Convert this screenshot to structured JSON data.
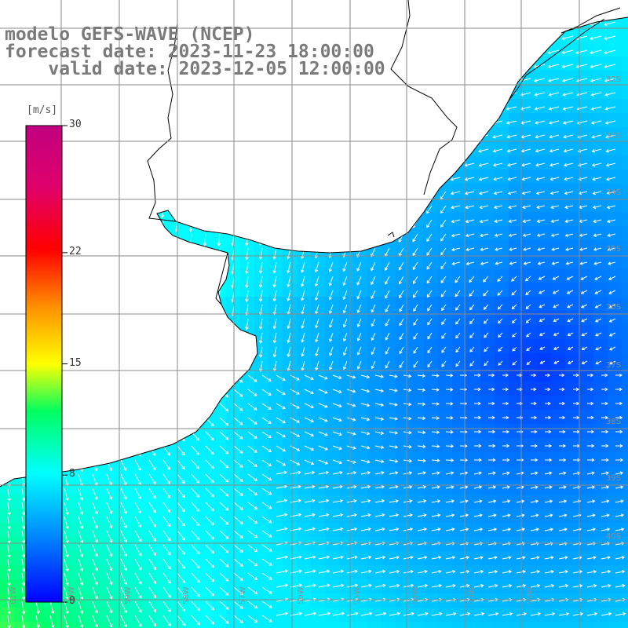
{
  "title": {
    "line1": "modelo GEFS-WAVE (NCEP)",
    "line2": "forecast date: 2023-11-23 18:00:00",
    "line3": "    valid date: 2023-12-05 12:00:00"
  },
  "colorbar": {
    "unit": "[m/s]",
    "ticks": [
      {
        "label": "30",
        "value": 30
      },
      {
        "label": "22",
        "value": 22
      },
      {
        "label": "15",
        "value": 15
      },
      {
        "label": "8",
        "value": 8
      },
      {
        "label": "0",
        "value": 0
      }
    ],
    "range": [
      0,
      30
    ],
    "colors": [
      "#0000ff",
      "#00a0ff",
      "#00ffff",
      "#00ff00",
      "#ffff00",
      "#ff8000",
      "#ff0000",
      "#c00080"
    ]
  },
  "map": {
    "lat_labels": [
      "32S",
      "33S",
      "34S",
      "35S",
      "36S",
      "37S",
      "38S",
      "39S",
      "40S"
    ],
    "lon_labels": [
      "61W",
      "60W",
      "59W",
      "58W",
      "57W",
      "56W",
      "55W",
      "54W",
      "53W",
      "52W"
    ],
    "land_color": "#ffffff",
    "grid_color": "#888888"
  }
}
